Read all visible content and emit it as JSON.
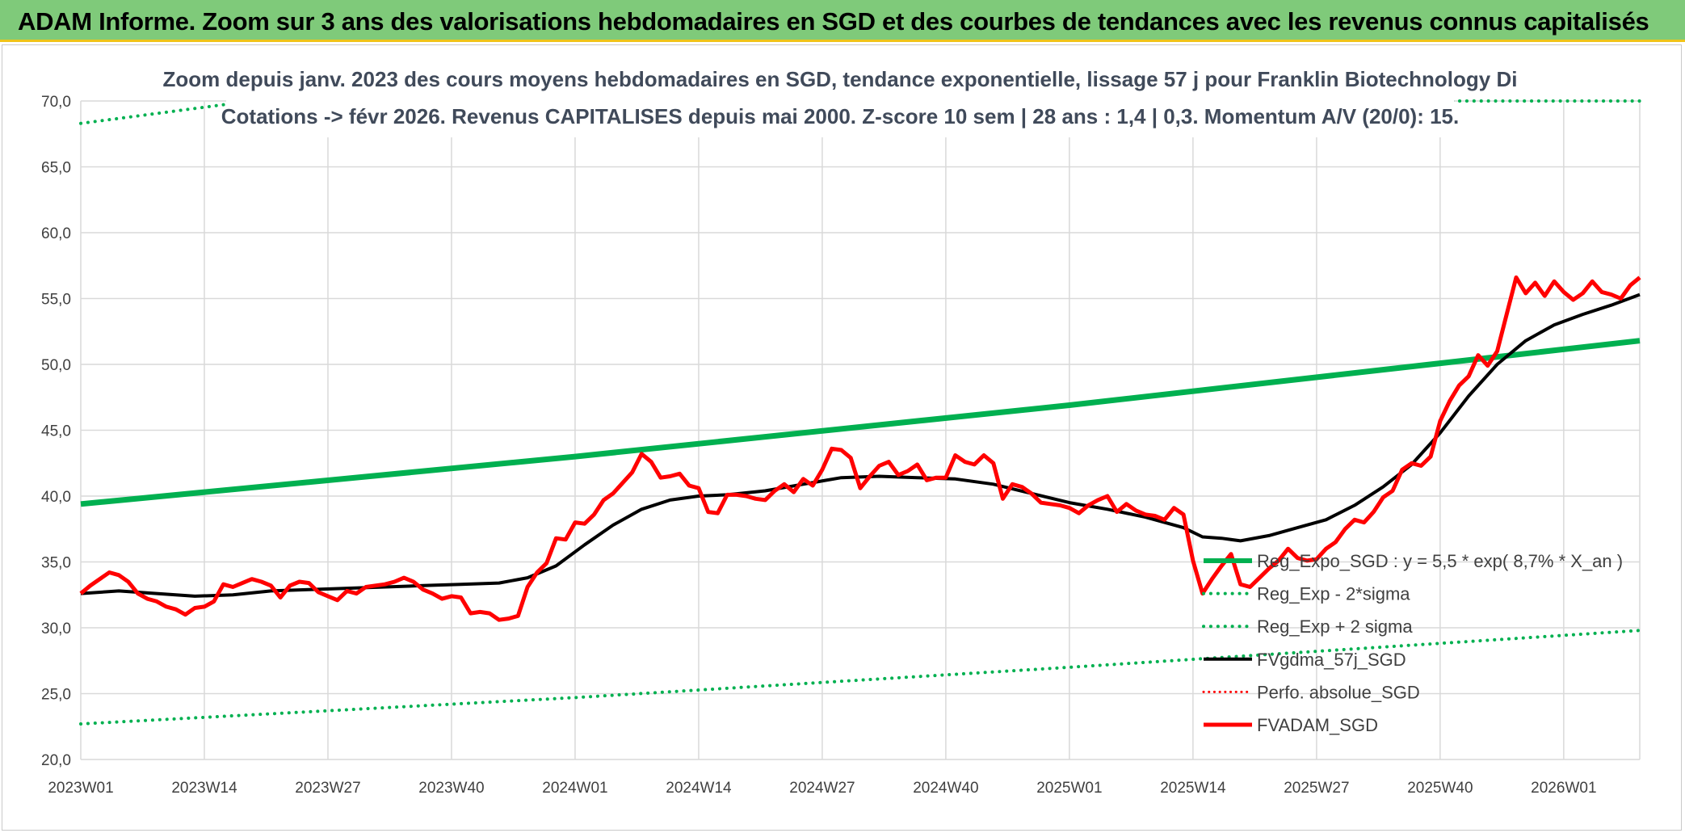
{
  "header": {
    "title": "ADAM Informe. Zoom sur 3 ans des valorisations hebdomadaires en SGD et des courbes de tendances avec les revenus connus capitalisés"
  },
  "chart_data": {
    "type": "line",
    "title_lines": [
      "Zoom depuis janv. 2023 des cours moyens hebdomadaires en SGD, tendance exponentielle, lissage 57 j pour Franklin Biotechnology Di",
      "Cotations -> févr 2026. Revenus CAPITALISES depuis mai 2000. Z-score 10 sem | 28 ans : 1,4 | 0,3. Momentum A/V (20/0): 15."
    ],
    "ylim": [
      20,
      70
    ],
    "yticks": [
      "20,0",
      "25,0",
      "30,0",
      "35,0",
      "40,0",
      "45,0",
      "50,0",
      "55,0",
      "60,0",
      "65,0",
      "70,0"
    ],
    "xticks": [
      {
        "label": "2023W01",
        "week": 0
      },
      {
        "label": "2023W14",
        "week": 13
      },
      {
        "label": "2023W27",
        "week": 26
      },
      {
        "label": "2023W40",
        "week": 39
      },
      {
        "label": "2024W01",
        "week": 52
      },
      {
        "label": "2024W14",
        "week": 65
      },
      {
        "label": "2024W27",
        "week": 78
      },
      {
        "label": "2024W40",
        "week": 91
      },
      {
        "label": "2025W01",
        "week": 104
      },
      {
        "label": "2025W14",
        "week": 117
      },
      {
        "label": "2025W27",
        "week": 130
      },
      {
        "label": "2025W40",
        "week": 143
      },
      {
        "label": "2026W01",
        "week": 156
      }
    ],
    "x_range": [
      0,
      164
    ],
    "grid": true,
    "legend_position": "bottom-right",
    "series": [
      {
        "name": "Reg_Expo_SGD : y = 5,5 * exp( 8,7% *  X_an )",
        "color": "#00b050",
        "style": "solid",
        "width": 7,
        "points": [
          [
            0,
            39.4
          ],
          [
            52,
            43.0
          ],
          [
            104,
            46.9
          ],
          [
            164,
            51.8
          ]
        ]
      },
      {
        "name": "Reg_Exp - 2*sigma",
        "color": "#00b050",
        "style": "dotted",
        "width": 4,
        "points": [
          [
            0,
            22.7
          ],
          [
            52,
            24.7
          ],
          [
            104,
            27.0
          ],
          [
            164,
            29.8
          ]
        ]
      },
      {
        "name": "Reg_Exp + 2 sigma",
        "color": "#00b050",
        "style": "dotted",
        "width": 4,
        "points": [
          [
            0,
            68.3
          ],
          [
            18,
            70.0
          ],
          [
            148,
            70.0
          ],
          [
            164,
            70.0
          ]
        ]
      },
      {
        "name": "FVgdma_57j_SGD",
        "color": "#000000",
        "style": "solid",
        "width": 4,
        "points": [
          [
            0,
            32.6
          ],
          [
            4,
            32.8
          ],
          [
            8,
            32.6
          ],
          [
            12,
            32.4
          ],
          [
            16,
            32.5
          ],
          [
            20,
            32.8
          ],
          [
            24,
            32.9
          ],
          [
            28,
            33.0
          ],
          [
            32,
            33.1
          ],
          [
            36,
            33.2
          ],
          [
            40,
            33.3
          ],
          [
            44,
            33.4
          ],
          [
            47,
            33.8
          ],
          [
            50,
            34.7
          ],
          [
            53,
            36.3
          ],
          [
            56,
            37.8
          ],
          [
            59,
            39.0
          ],
          [
            62,
            39.7
          ],
          [
            65,
            40.0
          ],
          [
            68,
            40.1
          ],
          [
            72,
            40.4
          ],
          [
            76,
            40.9
          ],
          [
            80,
            41.4
          ],
          [
            84,
            41.5
          ],
          [
            88,
            41.4
          ],
          [
            92,
            41.3
          ],
          [
            96,
            40.9
          ],
          [
            100,
            40.2
          ],
          [
            104,
            39.5
          ],
          [
            108,
            39.0
          ],
          [
            112,
            38.4
          ],
          [
            116,
            37.6
          ],
          [
            118,
            36.9
          ],
          [
            120,
            36.8
          ],
          [
            122,
            36.6
          ],
          [
            125,
            37.0
          ],
          [
            128,
            37.6
          ],
          [
            131,
            38.2
          ],
          [
            134,
            39.3
          ],
          [
            137,
            40.7
          ],
          [
            140,
            42.4
          ],
          [
            143,
            44.8
          ],
          [
            146,
            47.6
          ],
          [
            149,
            50.0
          ],
          [
            152,
            51.8
          ],
          [
            155,
            53.0
          ],
          [
            158,
            53.8
          ],
          [
            161,
            54.5
          ],
          [
            164,
            55.3
          ]
        ]
      },
      {
        "name": "Perfo. absolue_SGD",
        "color": "#ff0000",
        "style": "dotted",
        "width": 3,
        "points": []
      },
      {
        "name": "FVADAM_SGD",
        "color": "#ff0000",
        "style": "solid",
        "width": 5,
        "points": [
          [
            0,
            32.6
          ],
          [
            1,
            33.2
          ],
          [
            2,
            33.7
          ],
          [
            3,
            34.2
          ],
          [
            4,
            34.0
          ],
          [
            5,
            33.5
          ],
          [
            6,
            32.6
          ],
          [
            7,
            32.2
          ],
          [
            8,
            32.0
          ],
          [
            9,
            31.6
          ],
          [
            10,
            31.4
          ],
          [
            11,
            31.0
          ],
          [
            12,
            31.5
          ],
          [
            13,
            31.6
          ],
          [
            14,
            32.0
          ],
          [
            15,
            33.3
          ],
          [
            16,
            33.1
          ],
          [
            17,
            33.4
          ],
          [
            18,
            33.7
          ],
          [
            19,
            33.5
          ],
          [
            20,
            33.2
          ],
          [
            21,
            32.3
          ],
          [
            22,
            33.2
          ],
          [
            23,
            33.5
          ],
          [
            24,
            33.4
          ],
          [
            25,
            32.7
          ],
          [
            26,
            32.4
          ],
          [
            27,
            32.1
          ],
          [
            28,
            32.8
          ],
          [
            29,
            32.6
          ],
          [
            30,
            33.1
          ],
          [
            31,
            33.2
          ],
          [
            32,
            33.3
          ],
          [
            33,
            33.5
          ],
          [
            34,
            33.8
          ],
          [
            35,
            33.5
          ],
          [
            36,
            32.9
          ],
          [
            37,
            32.6
          ],
          [
            38,
            32.2
          ],
          [
            39,
            32.4
          ],
          [
            40,
            32.3
          ],
          [
            41,
            31.1
          ],
          [
            42,
            31.2
          ],
          [
            43,
            31.1
          ],
          [
            44,
            30.6
          ],
          [
            45,
            30.7
          ],
          [
            46,
            30.9
          ],
          [
            47,
            33.1
          ],
          [
            48,
            34.2
          ],
          [
            49,
            34.9
          ],
          [
            50,
            36.8
          ],
          [
            51,
            36.7
          ],
          [
            52,
            38.0
          ],
          [
            53,
            37.9
          ],
          [
            54,
            38.6
          ],
          [
            55,
            39.7
          ],
          [
            56,
            40.2
          ],
          [
            57,
            41.0
          ],
          [
            58,
            41.8
          ],
          [
            59,
            43.2
          ],
          [
            60,
            42.6
          ],
          [
            61,
            41.4
          ],
          [
            62,
            41.5
          ],
          [
            63,
            41.7
          ],
          [
            64,
            40.8
          ],
          [
            65,
            40.6
          ],
          [
            66,
            38.8
          ],
          [
            67,
            38.7
          ],
          [
            68,
            40.1
          ],
          [
            69,
            40.1
          ],
          [
            70,
            40.0
          ],
          [
            71,
            39.8
          ],
          [
            72,
            39.7
          ],
          [
            73,
            40.4
          ],
          [
            74,
            40.9
          ],
          [
            75,
            40.3
          ],
          [
            76,
            41.3
          ],
          [
            77,
            40.8
          ],
          [
            78,
            42.0
          ],
          [
            79,
            43.6
          ],
          [
            80,
            43.5
          ],
          [
            81,
            42.9
          ],
          [
            82,
            40.6
          ],
          [
            83,
            41.5
          ],
          [
            84,
            42.3
          ],
          [
            85,
            42.6
          ],
          [
            86,
            41.6
          ],
          [
            87,
            41.9
          ],
          [
            88,
            42.4
          ],
          [
            89,
            41.2
          ],
          [
            90,
            41.4
          ],
          [
            91,
            41.4
          ],
          [
            92,
            43.1
          ],
          [
            93,
            42.6
          ],
          [
            94,
            42.4
          ],
          [
            95,
            43.1
          ],
          [
            96,
            42.5
          ],
          [
            97,
            39.8
          ],
          [
            98,
            40.9
          ],
          [
            99,
            40.7
          ],
          [
            100,
            40.2
          ],
          [
            101,
            39.5
          ],
          [
            102,
            39.4
          ],
          [
            103,
            39.3
          ],
          [
            104,
            39.1
          ],
          [
            105,
            38.7
          ],
          [
            106,
            39.3
          ],
          [
            107,
            39.7
          ],
          [
            108,
            40.0
          ],
          [
            109,
            38.8
          ],
          [
            110,
            39.4
          ],
          [
            111,
            38.9
          ],
          [
            112,
            38.6
          ],
          [
            113,
            38.5
          ],
          [
            114,
            38.2
          ],
          [
            115,
            39.1
          ],
          [
            116,
            38.6
          ],
          [
            117,
            35.1
          ],
          [
            118,
            32.6
          ],
          [
            119,
            33.7
          ],
          [
            120,
            34.7
          ],
          [
            121,
            35.6
          ],
          [
            122,
            33.3
          ],
          [
            123,
            33.1
          ],
          [
            124,
            33.8
          ],
          [
            125,
            34.5
          ],
          [
            126,
            35.1
          ],
          [
            127,
            36.0
          ],
          [
            128,
            35.3
          ],
          [
            129,
            35.1
          ],
          [
            130,
            35.2
          ],
          [
            131,
            36.0
          ],
          [
            132,
            36.5
          ],
          [
            133,
            37.5
          ],
          [
            134,
            38.2
          ],
          [
            135,
            38.0
          ],
          [
            136,
            38.8
          ],
          [
            137,
            39.9
          ],
          [
            138,
            40.4
          ],
          [
            139,
            42.0
          ],
          [
            140,
            42.5
          ],
          [
            141,
            42.3
          ],
          [
            142,
            43.0
          ],
          [
            143,
            45.7
          ],
          [
            144,
            47.2
          ],
          [
            145,
            48.4
          ],
          [
            146,
            49.1
          ],
          [
            147,
            50.7
          ],
          [
            148,
            49.9
          ],
          [
            149,
            51.0
          ],
          [
            150,
            53.8
          ],
          [
            151,
            56.6
          ],
          [
            152,
            55.4
          ],
          [
            153,
            56.2
          ],
          [
            154,
            55.2
          ],
          [
            155,
            56.3
          ],
          [
            156,
            55.5
          ],
          [
            157,
            54.9
          ],
          [
            158,
            55.4
          ],
          [
            159,
            56.3
          ],
          [
            160,
            55.5
          ],
          [
            161,
            55.3
          ],
          [
            162,
            55.0
          ],
          [
            163,
            56.0
          ],
          [
            164,
            56.6
          ]
        ]
      }
    ]
  }
}
